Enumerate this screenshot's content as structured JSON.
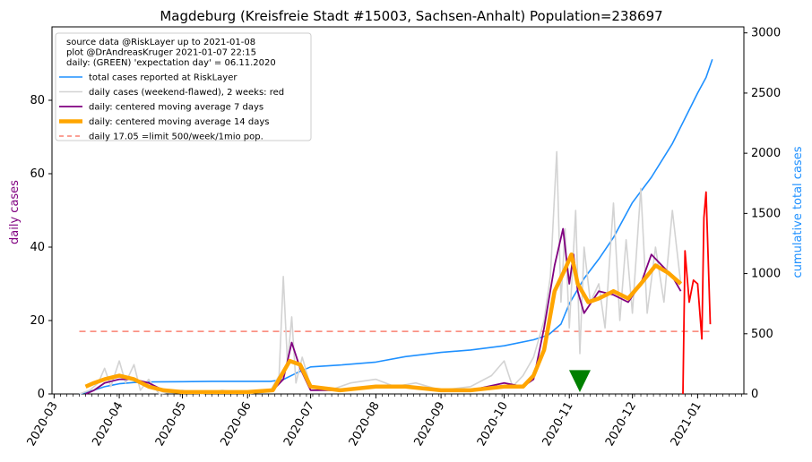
{
  "chart_data": {
    "type": "line",
    "title": "Magdeburg (Kreisfreie Stadt #15003, Sachsen-Anhalt) Population=238697",
    "ylabel_left": "daily cases",
    "ylabel_right": "cumulative total cases",
    "left_axis": {
      "min": 0,
      "max": 100,
      "ticks": [
        0,
        20,
        40,
        60,
        80
      ]
    },
    "right_axis": {
      "min": 0,
      "max": 3050,
      "ticks": [
        0,
        500,
        1000,
        1500,
        2000,
        2500,
        3000
      ]
    },
    "x_axis": {
      "start": "2020-02-29",
      "end": "2021-01-23",
      "ticks": [
        "2020-03",
        "2020-04",
        "2020-05",
        "2020-06",
        "2020-07",
        "2020-08",
        "2020-09",
        "2020-10",
        "2020-11",
        "2020-12",
        "2021-01"
      ]
    },
    "legend": {
      "placement": "top-left",
      "header": [
        "source data @RiskLayer up to 2021-01-08",
        "plot @DrAndreasKruger 2021-01-07 22:15",
        "daily: (GREEN) 'expectation day' = 06.11.2020"
      ],
      "entries": [
        {
          "label": "total cases reported at RiskLayer",
          "color": "#1e90ff"
        },
        {
          "label": "daily cases (weekend-flawed), 2 weeks: red",
          "color": "#d3d3d3"
        },
        {
          "label": "daily: centered moving average 7 days",
          "color": "#800080"
        },
        {
          "label": "daily: centered moving average 14 days",
          "color": "#ffa500"
        },
        {
          "label": "daily 17.05 =limit 500/week/1mio pop.",
          "color": "#fa8072"
        }
      ]
    },
    "limit_line": {
      "value": 17.05,
      "start": "2020-03-13",
      "end": "2021-01-07"
    },
    "expectation_day": "2020-11-06",
    "series": [
      {
        "name": "total cases reported at RiskLayer",
        "axis": "right",
        "color": "#1e90ff",
        "points": [
          [
            "2020-03-13",
            0
          ],
          [
            "2020-03-18",
            20
          ],
          [
            "2020-03-25",
            60
          ],
          [
            "2020-04-01",
            85
          ],
          [
            "2020-04-08",
            95
          ],
          [
            "2020-04-15",
            100
          ],
          [
            "2020-05-01",
            102
          ],
          [
            "2020-05-15",
            105
          ],
          [
            "2020-06-01",
            105
          ],
          [
            "2020-06-12",
            105
          ],
          [
            "2020-06-18",
            120
          ],
          [
            "2020-06-25",
            180
          ],
          [
            "2020-07-01",
            225
          ],
          [
            "2020-07-15",
            240
          ],
          [
            "2020-08-01",
            265
          ],
          [
            "2020-08-15",
            310
          ],
          [
            "2020-09-01",
            345
          ],
          [
            "2020-09-15",
            365
          ],
          [
            "2020-10-01",
            400
          ],
          [
            "2020-10-15",
            450
          ],
          [
            "2020-10-22",
            490
          ],
          [
            "2020-10-28",
            580
          ],
          [
            "2020-11-01",
            750
          ],
          [
            "2020-11-08",
            960
          ],
          [
            "2020-11-15",
            1120
          ],
          [
            "2020-11-22",
            1300
          ],
          [
            "2020-12-01",
            1590
          ],
          [
            "2020-12-10",
            1800
          ],
          [
            "2020-12-20",
            2080
          ],
          [
            "2021-01-01",
            2500
          ],
          [
            "2021-01-05",
            2630
          ],
          [
            "2021-01-08",
            2780
          ]
        ]
      },
      {
        "name": "daily cases (weekend-flawed), 2 weeks: red",
        "axis": "left",
        "color": "#d3d3d3",
        "points": [
          [
            "2020-03-13",
            0
          ],
          [
            "2020-03-18",
            1
          ],
          [
            "2020-03-22",
            3
          ],
          [
            "2020-03-25",
            7
          ],
          [
            "2020-03-28",
            2
          ],
          [
            "2020-04-01",
            9
          ],
          [
            "2020-04-04",
            3
          ],
          [
            "2020-04-08",
            8
          ],
          [
            "2020-04-11",
            1
          ],
          [
            "2020-04-15",
            4
          ],
          [
            "2020-04-20",
            0
          ],
          [
            "2020-05-01",
            1
          ],
          [
            "2020-05-10",
            0
          ],
          [
            "2020-05-20",
            1
          ],
          [
            "2020-06-01",
            0
          ],
          [
            "2020-06-12",
            1
          ],
          [
            "2020-06-16",
            5
          ],
          [
            "2020-06-18",
            32
          ],
          [
            "2020-06-20",
            8
          ],
          [
            "2020-06-22",
            21
          ],
          [
            "2020-06-24",
            3
          ],
          [
            "2020-06-27",
            10
          ],
          [
            "2020-07-01",
            2
          ],
          [
            "2020-07-10",
            1
          ],
          [
            "2020-07-20",
            3
          ],
          [
            "2020-08-01",
            4
          ],
          [
            "2020-08-10",
            2
          ],
          [
            "2020-08-20",
            3
          ],
          [
            "2020-09-01",
            1
          ],
          [
            "2020-09-15",
            2
          ],
          [
            "2020-09-25",
            5
          ],
          [
            "2020-10-01",
            9
          ],
          [
            "2020-10-05",
            2
          ],
          [
            "2020-10-10",
            5
          ],
          [
            "2020-10-15",
            10
          ],
          [
            "2020-10-20",
            20
          ],
          [
            "2020-10-23",
            32
          ],
          [
            "2020-10-26",
            66
          ],
          [
            "2020-10-28",
            25
          ],
          [
            "2020-10-30",
            45
          ],
          [
            "2020-11-01",
            18
          ],
          [
            "2020-11-04",
            50
          ],
          [
            "2020-11-06",
            11
          ],
          [
            "2020-11-08",
            40
          ],
          [
            "2020-11-11",
            25
          ],
          [
            "2020-11-15",
            30
          ],
          [
            "2020-11-18",
            18
          ],
          [
            "2020-11-22",
            52
          ],
          [
            "2020-11-25",
            20
          ],
          [
            "2020-11-28",
            42
          ],
          [
            "2020-12-01",
            22
          ],
          [
            "2020-12-05",
            56
          ],
          [
            "2020-12-08",
            22
          ],
          [
            "2020-12-12",
            40
          ],
          [
            "2020-12-16",
            25
          ],
          [
            "2020-12-20",
            50
          ],
          [
            "2020-12-24",
            30
          ]
        ]
      },
      {
        "name": "daily cases, last 2 weeks",
        "axis": "left",
        "color": "#ff0000",
        "points": [
          [
            "2020-12-25",
            0
          ],
          [
            "2020-12-26",
            39
          ],
          [
            "2020-12-28",
            25
          ],
          [
            "2020-12-30",
            31
          ],
          [
            "2021-01-01",
            30
          ],
          [
            "2021-01-03",
            15
          ],
          [
            "2021-01-04",
            48
          ],
          [
            "2021-01-05",
            55
          ],
          [
            "2021-01-07",
            19
          ]
        ]
      },
      {
        "name": "daily: centered moving average 7 days",
        "axis": "left",
        "color": "#800080",
        "points": [
          [
            "2020-03-16",
            0
          ],
          [
            "2020-03-20",
            1
          ],
          [
            "2020-03-25",
            3
          ],
          [
            "2020-04-01",
            4
          ],
          [
            "2020-04-08",
            4
          ],
          [
            "2020-04-15",
            3
          ],
          [
            "2020-04-22",
            1
          ],
          [
            "2020-05-01",
            0.5
          ],
          [
            "2020-06-01",
            0.5
          ],
          [
            "2020-06-13",
            1
          ],
          [
            "2020-06-18",
            4
          ],
          [
            "2020-06-22",
            14
          ],
          [
            "2020-06-26",
            7
          ],
          [
            "2020-07-01",
            1
          ],
          [
            "2020-07-15",
            1
          ],
          [
            "2020-08-01",
            2
          ],
          [
            "2020-08-15",
            2
          ],
          [
            "2020-09-01",
            1
          ],
          [
            "2020-09-15",
            1
          ],
          [
            "2020-10-01",
            3
          ],
          [
            "2020-10-10",
            2
          ],
          [
            "2020-10-15",
            4
          ],
          [
            "2020-10-20",
            18
          ],
          [
            "2020-10-25",
            35
          ],
          [
            "2020-10-29",
            45
          ],
          [
            "2020-11-01",
            30
          ],
          [
            "2020-11-03",
            38
          ],
          [
            "2020-11-05",
            28
          ],
          [
            "2020-11-08",
            22
          ],
          [
            "2020-11-15",
            28
          ],
          [
            "2020-11-22",
            27
          ],
          [
            "2020-11-29",
            25
          ],
          [
            "2020-12-05",
            30
          ],
          [
            "2020-12-10",
            38
          ],
          [
            "2020-12-15",
            35
          ],
          [
            "2020-12-20",
            32
          ],
          [
            "2020-12-24",
            28
          ]
        ]
      },
      {
        "name": "daily: centered moving average 14 days",
        "axis": "left",
        "color": "#ffa500",
        "points": [
          [
            "2020-03-16",
            2
          ],
          [
            "2020-03-20",
            3
          ],
          [
            "2020-03-25",
            4
          ],
          [
            "2020-04-01",
            5
          ],
          [
            "2020-04-08",
            4
          ],
          [
            "2020-04-15",
            2
          ],
          [
            "2020-04-22",
            1
          ],
          [
            "2020-05-01",
            0.5
          ],
          [
            "2020-06-01",
            0.5
          ],
          [
            "2020-06-13",
            1
          ],
          [
            "2020-06-17",
            5
          ],
          [
            "2020-06-21",
            9
          ],
          [
            "2020-06-26",
            8
          ],
          [
            "2020-07-01",
            2
          ],
          [
            "2020-07-15",
            1
          ],
          [
            "2020-08-01",
            2
          ],
          [
            "2020-08-15",
            2
          ],
          [
            "2020-09-01",
            1
          ],
          [
            "2020-09-15",
            1
          ],
          [
            "2020-10-01",
            2
          ],
          [
            "2020-10-10",
            2
          ],
          [
            "2020-10-15",
            5
          ],
          [
            "2020-10-20",
            12
          ],
          [
            "2020-10-25",
            28
          ],
          [
            "2020-10-30",
            34
          ],
          [
            "2020-11-02",
            38
          ],
          [
            "2020-11-05",
            30
          ],
          [
            "2020-11-10",
            25
          ],
          [
            "2020-11-15",
            26
          ],
          [
            "2020-11-22",
            28
          ],
          [
            "2020-11-29",
            26
          ],
          [
            "2020-12-05",
            30
          ],
          [
            "2020-12-12",
            35
          ],
          [
            "2020-12-18",
            33
          ],
          [
            "2020-12-24",
            30
          ]
        ]
      }
    ]
  }
}
